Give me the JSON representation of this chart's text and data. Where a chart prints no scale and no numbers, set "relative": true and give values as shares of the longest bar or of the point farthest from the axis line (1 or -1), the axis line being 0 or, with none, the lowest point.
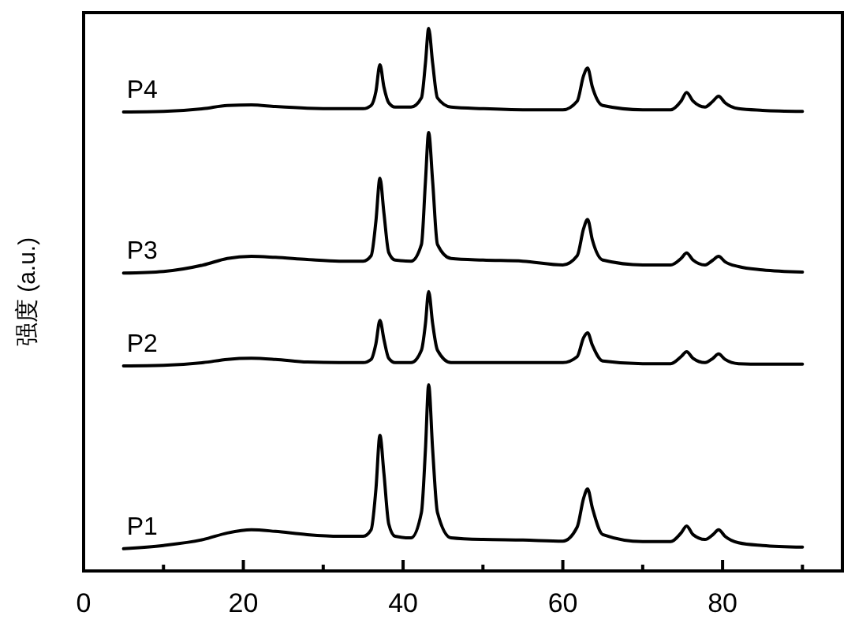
{
  "chart_data": {
    "type": "line",
    "ylabel": "强度 (a.u.)",
    "relative": true,
    "xlim": [
      0,
      95
    ],
    "xticks": [
      0,
      {
        "value": 10,
        "label": null
      },
      20,
      {
        "value": 30,
        "label": null
      },
      40,
      {
        "value": 50,
        "label": null
      },
      60,
      {
        "value": 70,
        "label": null
      },
      80,
      {
        "value": 90,
        "label": null
      }
    ],
    "x": [
      5,
      10,
      15,
      18,
      21,
      24,
      28,
      32,
      35,
      36,
      36.6,
      37.1,
      37.6,
      38.2,
      39,
      41,
      42.3,
      42.8,
      43.2,
      43.7,
      44.3,
      46,
      50,
      55,
      60,
      61.8,
      62.6,
      63.1,
      63.7,
      65,
      70,
      73.5,
      74.8,
      75.5,
      76.3,
      77.8,
      78.8,
      79.5,
      80.3,
      82,
      85,
      90
    ],
    "series": [
      {
        "name": "P1",
        "color": "#000000",
        "values": [
          0.041,
          0.047,
          0.058,
          0.07,
          0.076,
          0.073,
          0.067,
          0.064,
          0.064,
          0.076,
          0.151,
          0.25,
          0.18,
          0.087,
          0.064,
          0.061,
          0.108,
          0.224,
          0.343,
          0.224,
          0.108,
          0.061,
          0.058,
          0.057,
          0.055,
          0.081,
          0.134,
          0.151,
          0.116,
          0.067,
          0.054,
          0.054,
          0.07,
          0.083,
          0.067,
          0.058,
          0.067,
          0.076,
          0.064,
          0.052,
          0.047,
          0.044
        ]
      },
      {
        "name": "P2",
        "color": "#000000",
        "values": [
          0.378,
          0.379,
          0.384,
          0.39,
          0.392,
          0.39,
          0.385,
          0.384,
          0.384,
          0.39,
          0.419,
          0.462,
          0.427,
          0.392,
          0.384,
          0.384,
          0.407,
          0.456,
          0.515,
          0.456,
          0.407,
          0.384,
          0.384,
          0.384,
          0.384,
          0.395,
          0.43,
          0.439,
          0.416,
          0.387,
          0.382,
          0.382,
          0.395,
          0.404,
          0.392,
          0.384,
          0.392,
          0.4,
          0.39,
          0.382,
          0.381,
          0.381
        ]
      },
      {
        "name": "P3",
        "color": "#000000",
        "values": [
          0.549,
          0.552,
          0.564,
          0.576,
          0.58,
          0.578,
          0.574,
          0.571,
          0.571,
          0.581,
          0.645,
          0.724,
          0.66,
          0.587,
          0.573,
          0.571,
          0.602,
          0.718,
          0.808,
          0.718,
          0.602,
          0.576,
          0.573,
          0.571,
          0.564,
          0.581,
          0.631,
          0.648,
          0.61,
          0.573,
          0.564,
          0.564,
          0.576,
          0.586,
          0.573,
          0.564,
          0.573,
          0.58,
          0.57,
          0.561,
          0.555,
          0.551
        ]
      },
      {
        "name": "P4",
        "color": "#000000",
        "values": [
          0.846,
          0.847,
          0.852,
          0.858,
          0.859,
          0.856,
          0.853,
          0.852,
          0.852,
          0.858,
          0.884,
          0.933,
          0.892,
          0.863,
          0.855,
          0.855,
          0.872,
          0.936,
          1,
          0.936,
          0.872,
          0.855,
          0.852,
          0.85,
          0.85,
          0.866,
          0.913,
          0.927,
          0.892,
          0.858,
          0.85,
          0.85,
          0.866,
          0.882,
          0.866,
          0.855,
          0.866,
          0.875,
          0.863,
          0.852,
          0.849,
          0.847
        ]
      }
    ]
  }
}
